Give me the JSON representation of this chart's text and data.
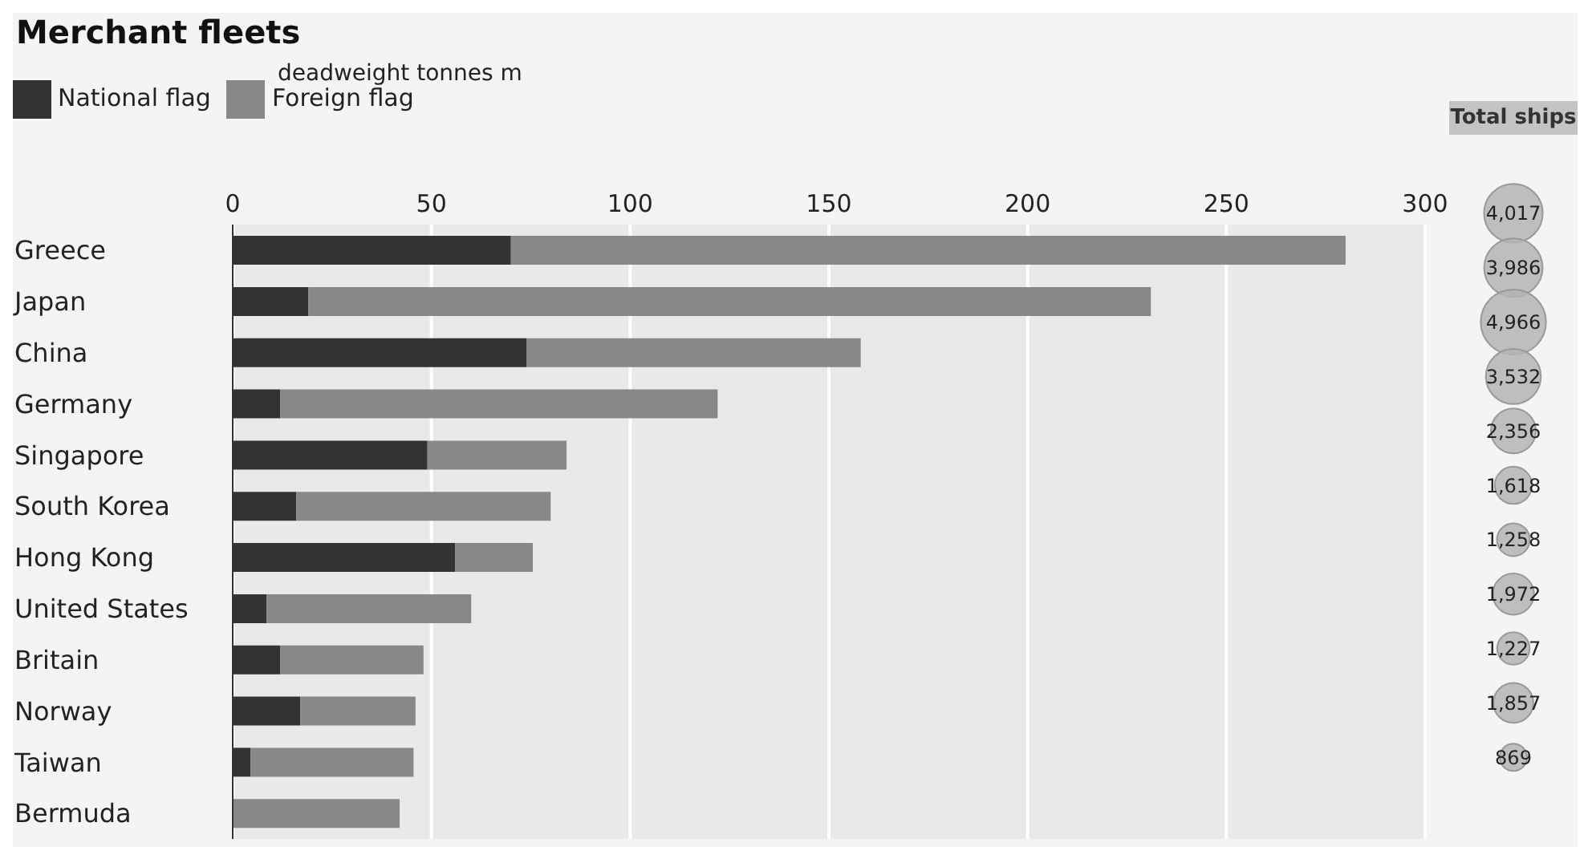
{
  "chart_data": [
    {
      "type": "bar",
      "title": "Merchant fleets",
      "xlabel": "deadweight tonnes m",
      "orientation": "horizontal",
      "stacked": true,
      "categories": [
        "Greece",
        "Japan",
        "China",
        "Germany",
        "Singapore",
        "South Korea",
        "Hong Kong",
        "United States",
        "Britain",
        "Norway",
        "Taiwan",
        "Bermuda"
      ],
      "series": [
        {
          "name": "National flag",
          "color": "#333333",
          "values": [
            70,
            19,
            74,
            12,
            49,
            16,
            56,
            8.5,
            12,
            17,
            4.5,
            0
          ]
        },
        {
          "name": "Foreign flag",
          "color": "#888888",
          "values": [
            210,
            212,
            84,
            110,
            35,
            64,
            19.5,
            51.5,
            36,
            29,
            41,
            42
          ]
        }
      ],
      "xlim": [
        0,
        300
      ],
      "xticks": [
        0,
        50,
        100,
        150,
        200,
        250,
        300
      ],
      "grid": "x",
      "legend": "top left"
    },
    {
      "type": "other",
      "title": "Total ships",
      "values": [
        4017,
        3986,
        4966,
        3532,
        2356,
        1618,
        1258,
        1972,
        1227,
        1857,
        869,
        null
      ],
      "value_labels": [
        "4,017",
        "3,986",
        "4,966",
        "3,532",
        "2,356",
        "1,618",
        "1,258",
        "1,972",
        "1,227",
        "1,857",
        "869",
        null
      ],
      "color": "#b4b4b4"
    }
  ]
}
